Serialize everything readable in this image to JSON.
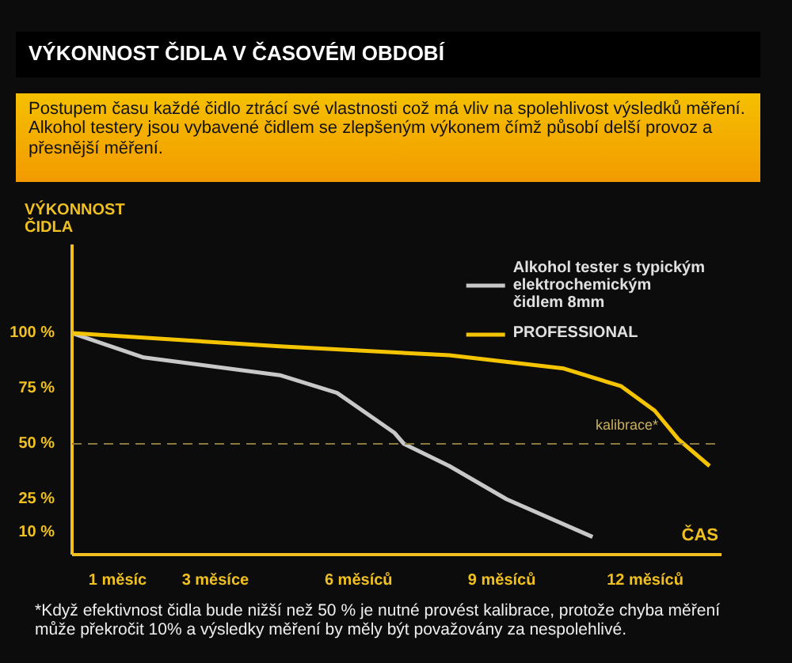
{
  "chart_data": {
    "type": "line",
    "title": "VÝKONNOST ČIDLA V ČASOVÉM OBDOBÍ",
    "subtitle": "Postupem času každé  čidlo ztrácí své vlastnosti což má vliv na spolehlivost výsledků měření. Alkohol testery jsou vybavené čidlem se zlepšeným výkonem čímž působí delší provoz a přesnější měření.",
    "ylabel": "VÝKONNOST\nČIDLA",
    "xlabel": "ČAS",
    "annotations": [
      "*Když efektivnost čidla bude nižší než 50 %  je nutné provést kalibrace, protože chyba měření může překročit 10% a výsledky měření by měly být považovány za nespolehlivé."
    ],
    "xlim": [
      0,
      13.6
    ],
    "xticks": [
      {
        "value": 1,
        "label": "1  měsíc"
      },
      {
        "value": 3,
        "label": "3 měsíce"
      },
      {
        "value": 6,
        "label": "6 měsíců"
      },
      {
        "value": 9,
        "label": "9 měsíců"
      },
      {
        "value": 12,
        "label": "12 měsíců"
      }
    ],
    "ylim": [
      0,
      140
    ],
    "yticks": [
      {
        "value": 10,
        "label": "10 %"
      },
      {
        "value": 25,
        "label": "25 %"
      },
      {
        "value": 50,
        "label": "50 %"
      },
      {
        "value": 75,
        "label": "75 %"
      },
      {
        "value": 100,
        "label": "100 %"
      }
    ],
    "series": [
      {
        "name": "Alkohol tester s typickým\nelektrochemickým\nčidlem 8mm",
        "color": "#c8c8c8",
        "x": [
          0,
          1.5,
          4.35,
          5.55,
          6.75,
          6.95,
          7.9,
          9.1,
          10.9
        ],
        "values": [
          100,
          89,
          81,
          73,
          55,
          50,
          40,
          25,
          8
        ]
      },
      {
        "name": "PROFESSIONAL",
        "color": "#f5c400",
        "x": [
          0,
          4.35,
          7.9,
          10.3,
          11.5,
          12.2,
          12.7,
          13.35
        ],
        "values": [
          100,
          94,
          90,
          84,
          76,
          65,
          52,
          40
        ]
      }
    ],
    "ref_lines": [
      {
        "axis": "y",
        "value": 50,
        "label": "kalibrace*",
        "color": "#8a7a40",
        "line_style": "dashed"
      }
    ],
    "grid": false,
    "legend": "top right"
  }
}
